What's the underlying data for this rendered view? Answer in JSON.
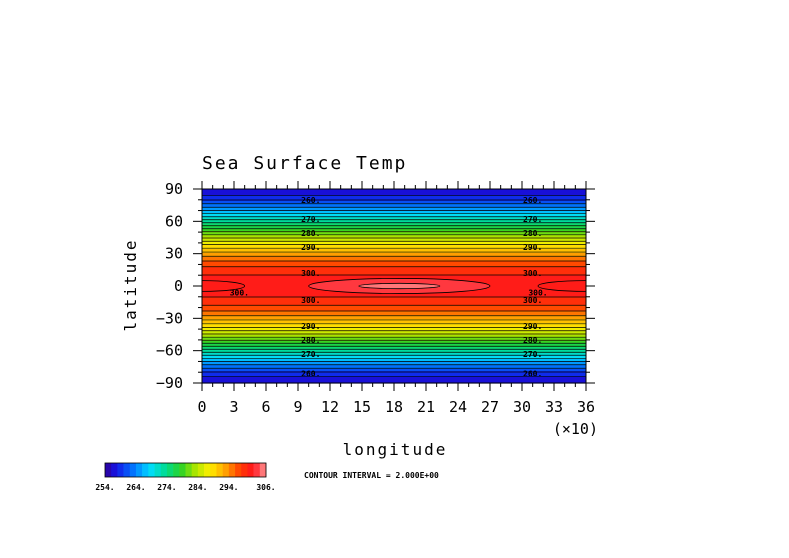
{
  "chart_data": {
    "type": "heatmap",
    "title": "Sea Surface Temp",
    "xlabel": "longitude",
    "ylabel": "latitude",
    "x_multiplier_label": "(×10)",
    "xlim": [
      0,
      36
    ],
    "ylim": [
      -90,
      90
    ],
    "x_tick_labels": [
      "0",
      "3",
      "6",
      "9",
      "12",
      "15",
      "18",
      "21",
      "24",
      "27",
      "30",
      "33",
      "36"
    ],
    "y_tick_labels": [
      "90",
      "60",
      "30",
      "0",
      "−30",
      "−60",
      "−90"
    ],
    "y_ticks": [
      90,
      60,
      30,
      0,
      -30,
      -60,
      -90
    ],
    "contour_interval_text": "CONTOUR INTERVAL = 2.000E+00",
    "colorbar": {
      "min": 254,
      "max": 306,
      "step": 2,
      "labels": [
        "254.",
        "264.",
        "274.",
        "284.",
        "294.",
        "306."
      ],
      "label_values": [
        254,
        264,
        274,
        284,
        294,
        306
      ]
    },
    "contour_labels": [
      {
        "text": "260.",
        "lon": 10.2,
        "lat": 80
      },
      {
        "text": "260.",
        "lon": 31.0,
        "lat": 80
      },
      {
        "text": "270.",
        "lon": 10.2,
        "lat": 62
      },
      {
        "text": "270.",
        "lon": 31.0,
        "lat": 62
      },
      {
        "text": "280.",
        "lon": 10.2,
        "lat": 49
      },
      {
        "text": "280.",
        "lon": 31.0,
        "lat": 49
      },
      {
        "text": "290.",
        "lon": 10.2,
        "lat": 36
      },
      {
        "text": "290.",
        "lon": 31.0,
        "lat": 36
      },
      {
        "text": "300.",
        "lon": 10.2,
        "lat": 12
      },
      {
        "text": "300.",
        "lon": 31.0,
        "lat": 12
      },
      {
        "text": "300.",
        "lon": 3.5,
        "lat": -6
      },
      {
        "text": "300.",
        "lon": 31.5,
        "lat": -6
      },
      {
        "text": "300.",
        "lon": 10.2,
        "lat": -13
      },
      {
        "text": "300.",
        "lon": 31.0,
        "lat": -13
      },
      {
        "text": "290.",
        "lon": 10.2,
        "lat": -37
      },
      {
        "text": "290.",
        "lon": 31.0,
        "lat": -37
      },
      {
        "text": "280.",
        "lon": 10.2,
        "lat": -50
      },
      {
        "text": "280.",
        "lon": 31.0,
        "lat": -50
      },
      {
        "text": "270.",
        "lon": 10.2,
        "lat": -63
      },
      {
        "text": "270.",
        "lon": 31.0,
        "lat": -63
      },
      {
        "text": "260.",
        "lon": 10.2,
        "lat": -81
      },
      {
        "text": "260.",
        "lon": 31.0,
        "lat": -81
      }
    ],
    "warm_pools": [
      {
        "center_lon": 18.5,
        "center_lat": 0,
        "half_width_lon": 8.5,
        "half_height_lat": 7,
        "value": 302
      },
      {
        "center_lon": 18.5,
        "center_lat": 0,
        "half_width_lon": 3.8,
        "half_height_lat": 2.5,
        "value": 304
      },
      {
        "center_lon": 0,
        "center_lat": 0,
        "half_width_lon": 4.0,
        "half_height_lat": 5,
        "value": 300
      },
      {
        "center_lon": 36,
        "center_lat": 0,
        "half_width_lon": 4.5,
        "half_height_lat": 5,
        "value": 300
      }
    ],
    "grid": false
  }
}
